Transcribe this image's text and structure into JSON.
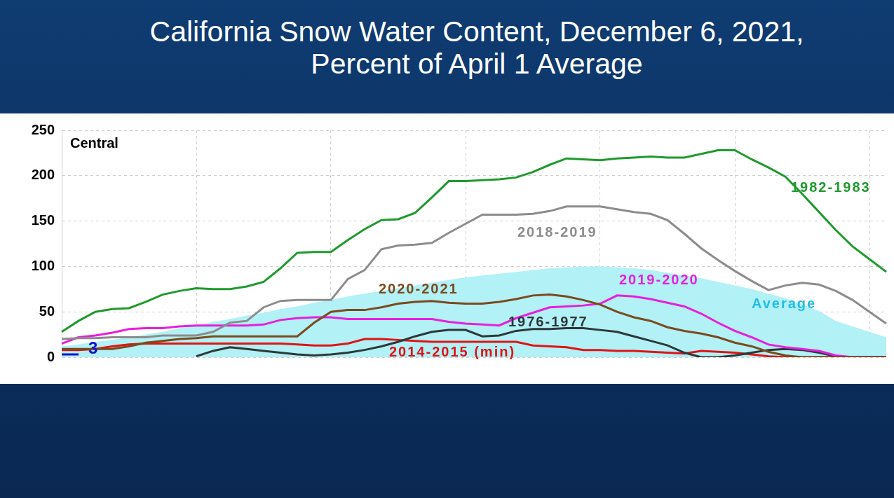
{
  "chart_data": {
    "type": "line",
    "title": "California Snow Water Content, December 6, 2021,",
    "subtitle": "Percent of April 1 Average",
    "annotations": [
      "Central"
    ],
    "categories": [
      null,
      null,
      null,
      null,
      null,
      null,
      null,
      null,
      null,
      null,
      null,
      null,
      null,
      null,
      null,
      null,
      null,
      null,
      null,
      null,
      null,
      null,
      null,
      null,
      null,
      null,
      null,
      null,
      null,
      null,
      null,
      null,
      null,
      null,
      null,
      null,
      null,
      null,
      null,
      null,
      null,
      null,
      null,
      null,
      null,
      null,
      null,
      null,
      null,
      null
    ],
    "ylim": [
      0,
      250
    ],
    "yticks": [
      0,
      50,
      100,
      150,
      200,
      250
    ],
    "grid": true,
    "tick_labels": "y",
    "series": [
      {
        "name": "1982-1983",
        "color": "#1f9a2e",
        "values": [
          28,
          40,
          50,
          53,
          54,
          61,
          69,
          73,
          76,
          75,
          75,
          78,
          83,
          98,
          115,
          116,
          116,
          129,
          141,
          151,
          152,
          159,
          176,
          194,
          194,
          195,
          196,
          198,
          204,
          212,
          219,
          218,
          217,
          219,
          220,
          221,
          220,
          220,
          224,
          228,
          228,
          218,
          209,
          199,
          180,
          160,
          140,
          122,
          108,
          94
        ]
      },
      {
        "name": "2018-2019",
        "color": "#8c8c8c",
        "values": [
          20,
          21,
          21,
          22,
          22,
          22,
          24,
          24,
          24,
          28,
          38,
          40,
          55,
          62,
          63,
          63,
          63,
          86,
          96,
          119,
          123,
          124,
          126,
          137,
          147,
          157,
          157,
          157,
          158,
          161,
          166,
          166,
          166,
          163,
          160,
          158,
          151,
          136,
          120,
          107,
          95,
          84,
          74,
          79,
          82,
          80,
          73,
          63,
          50,
          37
        ]
      },
      {
        "name": "2020-2021",
        "color": "#7b4a1c",
        "values": [
          9,
          9,
          9,
          9,
          12,
          16,
          18,
          20,
          21,
          23,
          23,
          23,
          23,
          23,
          23,
          38,
          50,
          52,
          52,
          55,
          59,
          61,
          62,
          60,
          59,
          59,
          61,
          64,
          68,
          69,
          67,
          63,
          58,
          50,
          44,
          40,
          33,
          29,
          26,
          22,
          16,
          12,
          6,
          2,
          0,
          0,
          0,
          0,
          0,
          0
        ]
      },
      {
        "name": "2019-2020",
        "color": "#e81ee0",
        "values": [
          15,
          22,
          24,
          27,
          31,
          32,
          32,
          34,
          35,
          35,
          35,
          35,
          36,
          41,
          43,
          44,
          44,
          42,
          42,
          42,
          42,
          42,
          42,
          39,
          37,
          36,
          35,
          43,
          49,
          55,
          56,
          57,
          59,
          68,
          67,
          64,
          60,
          56,
          48,
          38,
          29,
          22,
          14,
          11,
          9,
          7,
          2,
          0,
          0,
          0
        ]
      },
      {
        "name": "1976-1977",
        "color": "#2e3838",
        "values": [
          null,
          null,
          null,
          null,
          null,
          null,
          null,
          null,
          1,
          7,
          11,
          9,
          7,
          5,
          3,
          2,
          3,
          5,
          8,
          12,
          17,
          23,
          28,
          30,
          30,
          23,
          24,
          29,
          31,
          31,
          32,
          32,
          30,
          28,
          23,
          18,
          13,
          5,
          0,
          0,
          2,
          5,
          8,
          9,
          8,
          5,
          1,
          0,
          0,
          0
        ]
      },
      {
        "name": "2014-2015 (min)",
        "color": "#e01414",
        "values": [
          8,
          8,
          9,
          12,
          14,
          15,
          15,
          15,
          15,
          15,
          15,
          15,
          15,
          15,
          14,
          13,
          13,
          15,
          20,
          20,
          19,
          18,
          17,
          17,
          17,
          17,
          17,
          17,
          13,
          12,
          11,
          8,
          8,
          7,
          7,
          6,
          5,
          4,
          7,
          6,
          5,
          3,
          1,
          0,
          0,
          0,
          0,
          0,
          0,
          0
        ]
      },
      {
        "name": "Average",
        "type": "area",
        "color": "#b2f1f6",
        "values": [
          12,
          14,
          17,
          19,
          22,
          25,
          28,
          32,
          35,
          39,
          42,
          46,
          49,
          53,
          56,
          60,
          63,
          67,
          70,
          73,
          76,
          79,
          82,
          85,
          88,
          90,
          92,
          94,
          96,
          98,
          99,
          100,
          100,
          99,
          98,
          96,
          93,
          90,
          87,
          83,
          79,
          75,
          70,
          65,
          58,
          51,
          40,
          34,
          28,
          22
        ]
      },
      {
        "color": "#1414d2",
        "data_labels": true,
        "values": [
          3,
          3,
          null,
          null,
          null,
          null,
          null,
          null,
          null,
          null,
          null,
          null,
          null,
          null,
          null,
          null,
          null,
          null,
          null,
          null,
          null,
          null,
          null,
          null,
          null,
          null,
          null,
          null,
          null,
          null,
          null,
          null,
          null,
          null,
          null,
          null,
          null,
          null,
          null,
          null,
          null,
          null,
          null,
          null,
          null,
          null,
          null,
          null,
          null,
          null
        ]
      }
    ]
  }
}
